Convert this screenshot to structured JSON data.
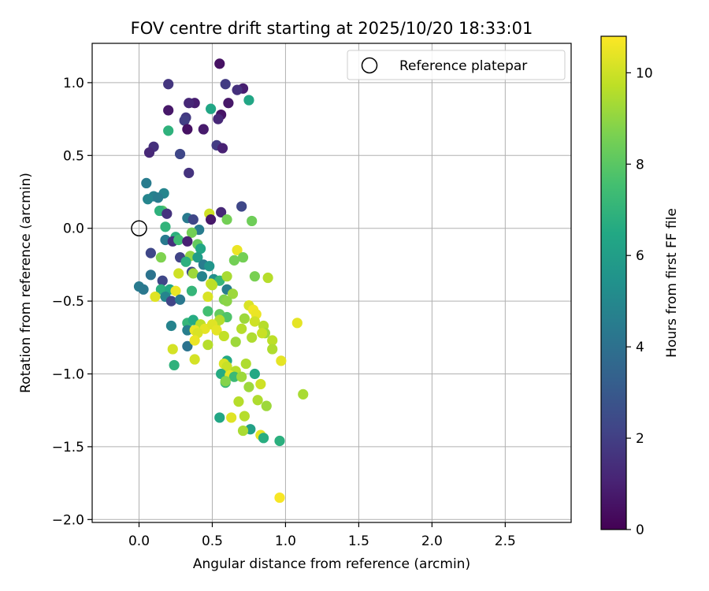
{
  "chart_data": {
    "type": "scatter",
    "title": "FOV centre drift starting at 2025/10/20 18:33:01",
    "xlabel": "Angular distance from reference (arcmin)",
    "ylabel": "Rotation from reference (arcmin)",
    "xlim": [
      -0.32,
      2.95
    ],
    "ylim": [
      -2.02,
      1.27
    ],
    "xticks": [
      "0.0",
      "0.5",
      "1.0",
      "1.5",
      "2.0",
      "2.5"
    ],
    "yticks": [
      "1.0",
      "0.5",
      "0.0",
      "−0.5",
      "−1.0",
      "−1.5",
      "−2.0"
    ],
    "grid": true,
    "legend": {
      "label": "Reference platepar",
      "position": "top-right"
    },
    "reference_point": [
      0.0,
      0.0
    ],
    "colorbar": {
      "label": "Hours from first FF file",
      "min": 0,
      "max": 10.8,
      "ticks": [
        "0",
        "2",
        "4",
        "6",
        "8",
        "10"
      ],
      "colormap": "viridis"
    },
    "points": [
      [
        0.55,
        1.13,
        0.5
      ],
      [
        0.2,
        0.99,
        1.7
      ],
      [
        0.59,
        0.99,
        1.9
      ],
      [
        0.71,
        0.96,
        0.9
      ],
      [
        0.67,
        0.95,
        1.5
      ],
      [
        0.61,
        0.86,
        0.7
      ],
      [
        0.38,
        0.86,
        0.9
      ],
      [
        0.34,
        0.86,
        1.2
      ],
      [
        0.75,
        0.88,
        6.4
      ],
      [
        0.2,
        0.81,
        0.7
      ],
      [
        0.49,
        0.82,
        6.4
      ],
      [
        0.56,
        0.78,
        0.6
      ],
      [
        0.32,
        0.76,
        1.8
      ],
      [
        0.31,
        0.74,
        2.0
      ],
      [
        0.54,
        0.75,
        1.2
      ],
      [
        0.33,
        0.68,
        0.5
      ],
      [
        0.44,
        0.68,
        0.8
      ],
      [
        0.2,
        0.67,
        6.9
      ],
      [
        0.53,
        0.57,
        1.9
      ],
      [
        0.57,
        0.55,
        1.0
      ],
      [
        0.1,
        0.56,
        1.5
      ],
      [
        0.07,
        0.52,
        1.2
      ],
      [
        0.28,
        0.51,
        2.3
      ],
      [
        0.34,
        0.38,
        1.6
      ],
      [
        0.05,
        0.31,
        4.5
      ],
      [
        0.1,
        0.22,
        4.7
      ],
      [
        0.06,
        0.2,
        4.9
      ],
      [
        0.17,
        0.24,
        4.9
      ],
      [
        0.13,
        0.21,
        4.5
      ],
      [
        0.16,
        0.12,
        7.9
      ],
      [
        0.14,
        0.12,
        6.9
      ],
      [
        0.19,
        0.1,
        1.6
      ],
      [
        0.48,
        0.1,
        10.0
      ],
      [
        0.56,
        0.11,
        1.2
      ],
      [
        0.7,
        0.15,
        2.3
      ],
      [
        0.33,
        0.07,
        4.4
      ],
      [
        0.37,
        0.06,
        2.3
      ],
      [
        0.49,
        0.06,
        0.7
      ],
      [
        0.6,
        0.06,
        8.5
      ],
      [
        0.77,
        0.05,
        8.4
      ],
      [
        0.18,
        0.01,
        7.0
      ],
      [
        0.41,
        -0.01,
        4.5
      ],
      [
        0.36,
        -0.03,
        8.5
      ],
      [
        0.25,
        -0.06,
        6.8
      ],
      [
        0.18,
        -0.08,
        4.4
      ],
      [
        0.23,
        -0.09,
        1.5
      ],
      [
        0.27,
        -0.08,
        7.4
      ],
      [
        0.33,
        -0.09,
        1.0
      ],
      [
        0.4,
        -0.11,
        8.2
      ],
      [
        0.42,
        -0.14,
        6.4
      ],
      [
        0.08,
        -0.17,
        2.3
      ],
      [
        0.15,
        -0.2,
        8.7
      ],
      [
        0.28,
        -0.2,
        2.2
      ],
      [
        0.35,
        -0.19,
        9.0
      ],
      [
        0.4,
        -0.2,
        5.9
      ],
      [
        0.32,
        -0.23,
        6.8
      ],
      [
        0.67,
        -0.15,
        10.5
      ],
      [
        0.65,
        -0.22,
        8.5
      ],
      [
        0.71,
        -0.2,
        8.5
      ],
      [
        0.44,
        -0.25,
        4.5
      ],
      [
        0.48,
        -0.26,
        5.6
      ],
      [
        0.36,
        -0.3,
        2.4
      ],
      [
        0.37,
        -0.31,
        9.2
      ],
      [
        0.27,
        -0.31,
        10.0
      ],
      [
        0.43,
        -0.33,
        4.8
      ],
      [
        0.51,
        -0.35,
        5.3
      ],
      [
        0.55,
        -0.36,
        7.1
      ],
      [
        0.6,
        -0.33,
        9.4
      ],
      [
        0.79,
        -0.33,
        8.6
      ],
      [
        0.88,
        -0.34,
        9.6
      ],
      [
        0.08,
        -0.32,
        4.1
      ],
      [
        0.16,
        -0.36,
        2.3
      ],
      [
        0.0,
        -0.4,
        4.4
      ],
      [
        0.03,
        -0.42,
        4.3
      ],
      [
        0.15,
        -0.42,
        6.8
      ],
      [
        0.21,
        -0.42,
        6.5
      ],
      [
        0.25,
        -0.43,
        10.5
      ],
      [
        0.36,
        -0.43,
        7.1
      ],
      [
        0.6,
        -0.42,
        4.6
      ],
      [
        0.64,
        -0.45,
        9.2
      ],
      [
        0.49,
        -0.38,
        10.0
      ],
      [
        0.5,
        -0.39,
        9.7
      ],
      [
        0.11,
        -0.47,
        10.3
      ],
      [
        0.18,
        -0.47,
        4.9
      ],
      [
        0.22,
        -0.5,
        2.2
      ],
      [
        0.28,
        -0.49,
        4.3
      ],
      [
        0.47,
        -0.47,
        10.2
      ],
      [
        0.58,
        -0.49,
        8.7
      ],
      [
        0.6,
        -0.5,
        8.9
      ],
      [
        0.75,
        -0.53,
        10.2
      ],
      [
        0.78,
        -0.56,
        10.6
      ],
      [
        0.8,
        -0.59,
        10.5
      ],
      [
        0.79,
        -0.64,
        10.0
      ],
      [
        0.85,
        -0.67,
        9.6
      ],
      [
        0.86,
        -0.72,
        9.2
      ],
      [
        0.91,
        -0.77,
        9.7
      ],
      [
        0.91,
        -0.83,
        9.5
      ],
      [
        1.08,
        -0.65,
        10.4
      ],
      [
        0.97,
        -0.91,
        10.4
      ],
      [
        0.33,
        -0.65,
        7.1
      ],
      [
        0.37,
        -0.63,
        6.6
      ],
      [
        0.42,
        -0.66,
        9.7
      ],
      [
        0.47,
        -0.57,
        7.5
      ],
      [
        0.55,
        -0.59,
        8.2
      ],
      [
        0.6,
        -0.61,
        7.8
      ],
      [
        0.52,
        -0.67,
        10.1
      ],
      [
        0.55,
        -0.63,
        9.6
      ],
      [
        0.45,
        -0.69,
        10.4
      ],
      [
        0.33,
        -0.7,
        4.6
      ],
      [
        0.38,
        -0.7,
        10.5
      ],
      [
        0.4,
        -0.72,
        10.2
      ],
      [
        0.5,
        -0.66,
        10.3
      ],
      [
        0.53,
        -0.7,
        10.4
      ],
      [
        0.22,
        -0.67,
        4.8
      ],
      [
        0.58,
        -0.74,
        9.8
      ],
      [
        0.7,
        -0.69,
        9.6
      ],
      [
        0.72,
        -0.62,
        9.2
      ],
      [
        0.77,
        -0.75,
        9.5
      ],
      [
        0.84,
        -0.72,
        9.9
      ],
      [
        0.33,
        -0.81,
        4.1
      ],
      [
        0.38,
        -0.77,
        10.5
      ],
      [
        0.47,
        -0.8,
        9.6
      ],
      [
        0.23,
        -0.83,
        10.1
      ],
      [
        0.66,
        -0.78,
        9.2
      ],
      [
        0.38,
        -0.9,
        10.1
      ],
      [
        0.6,
        -0.91,
        6.5
      ],
      [
        0.24,
        -0.94,
        6.9
      ],
      [
        0.58,
        -0.93,
        10.2
      ],
      [
        0.6,
        -0.95,
        9.9
      ],
      [
        0.66,
        -0.98,
        9.6
      ],
      [
        0.73,
        -0.93,
        9.5
      ],
      [
        0.56,
        -1.0,
        6.6
      ],
      [
        0.62,
        -1.01,
        10.4
      ],
      [
        0.65,
        -1.02,
        7.3
      ],
      [
        0.7,
        -1.02,
        9.2
      ],
      [
        0.79,
        -1.0,
        6.5
      ],
      [
        0.59,
        -1.06,
        7.2
      ],
      [
        0.59,
        -1.05,
        8.8
      ],
      [
        0.75,
        -1.09,
        9.2
      ],
      [
        0.83,
        -1.07,
        10.0
      ],
      [
        1.12,
        -1.14,
        9.4
      ],
      [
        0.68,
        -1.19,
        9.6
      ],
      [
        0.81,
        -1.18,
        9.5
      ],
      [
        0.87,
        -1.22,
        9.2
      ],
      [
        0.72,
        -1.29,
        9.6
      ],
      [
        0.55,
        -1.3,
        6.4
      ],
      [
        0.63,
        -1.3,
        10.3
      ],
      [
        0.76,
        -1.38,
        6.1
      ],
      [
        0.71,
        -1.39,
        9.4
      ],
      [
        0.83,
        -1.42,
        10.4
      ],
      [
        0.85,
        -1.44,
        6.7
      ],
      [
        0.96,
        -1.46,
        6.8
      ],
      [
        0.96,
        -1.85,
        10.7
      ]
    ]
  }
}
